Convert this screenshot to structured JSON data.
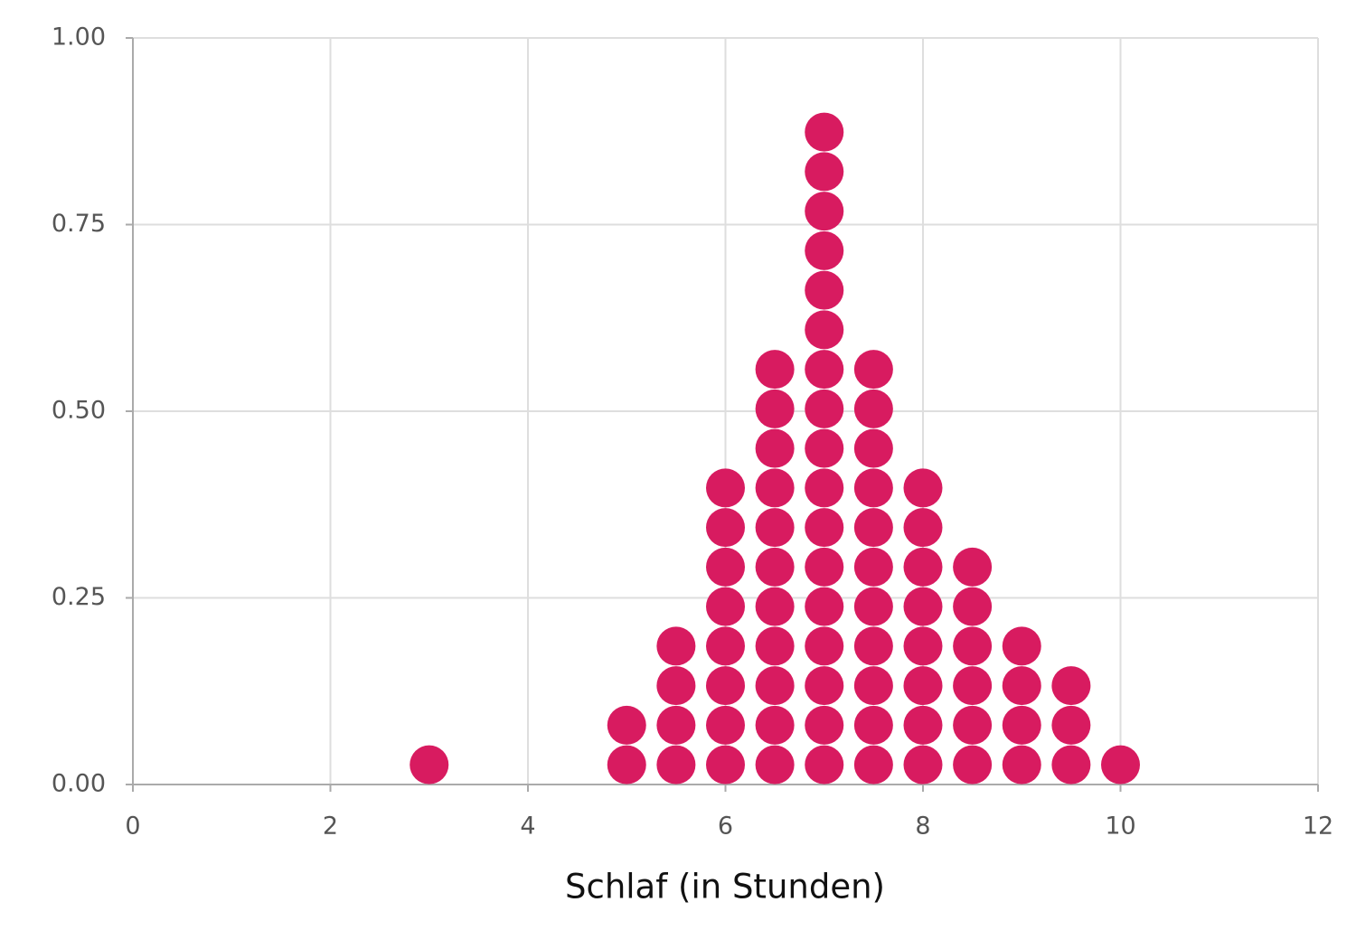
{
  "chart_data": {
    "type": "dotplot",
    "x_label": "Schlaf (in Stunden)",
    "values": [
      3,
      5,
      5,
      5.5,
      5.5,
      5.5,
      5.5,
      6,
      6,
      6,
      6,
      6,
      6,
      6,
      6,
      6.5,
      6.5,
      6.5,
      6.5,
      6.5,
      6.5,
      6.5,
      6.5,
      6.5,
      6.5,
      6.5,
      7,
      7,
      7,
      7,
      7,
      7,
      7,
      7,
      7,
      7,
      7,
      7,
      7,
      7,
      7,
      7,
      7,
      7.5,
      7.5,
      7.5,
      7.5,
      7.5,
      7.5,
      7.5,
      7.5,
      7.5,
      7.5,
      7.5,
      8,
      8,
      8,
      8,
      8,
      8,
      8,
      8,
      8.5,
      8.5,
      8.5,
      8.5,
      8.5,
      8.5,
      9,
      9,
      9,
      9,
      9.5,
      9.5,
      9.5,
      10
    ],
    "color": "#d81b60",
    "xlim": [
      0,
      12
    ],
    "xticks": [
      0,
      2,
      4,
      6,
      8,
      10,
      12
    ],
    "ylim": [
      0,
      1
    ],
    "yticks": [
      {
        "value": 0,
        "label": "0.00"
      },
      {
        "value": 0.25,
        "label": "0.25"
      },
      {
        "value": 0.5,
        "label": "0.50"
      },
      {
        "value": 0.75,
        "label": "0.75"
      },
      {
        "value": 1,
        "label": "1.00"
      }
    ],
    "grid": true
  }
}
